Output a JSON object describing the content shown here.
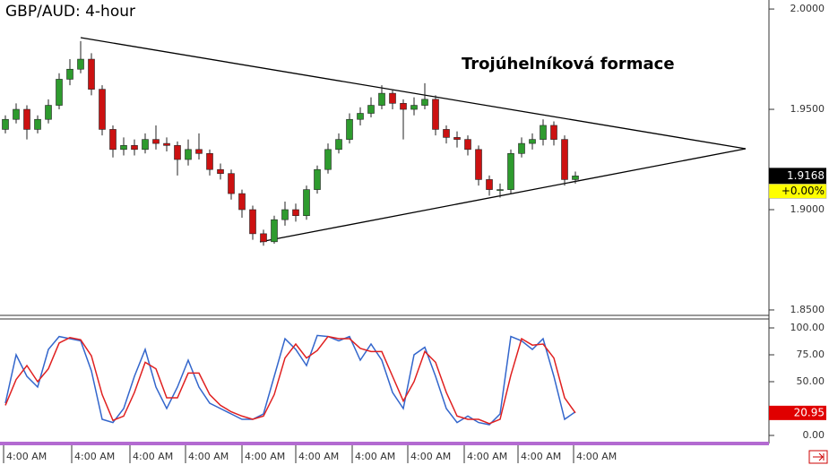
{
  "chart_data": [
    {
      "type": "candlestick",
      "title": "GBP/AUD: 4-hour",
      "annotation": "Trojúhelníková formace",
      "open": [
        1.94,
        1.945,
        1.95,
        1.94,
        1.945,
        1.952,
        1.965,
        1.97,
        1.975,
        1.96,
        1.94,
        1.93,
        1.932,
        1.93,
        1.935,
        1.933,
        1.932,
        1.925,
        1.93,
        1.928,
        1.92,
        1.918,
        1.908,
        1.9,
        1.888,
        1.884,
        1.895,
        1.9,
        1.897,
        1.91,
        1.92,
        1.93,
        1.935,
        1.945,
        1.948,
        1.952,
        1.958,
        1.953,
        1.95,
        1.952,
        1.955,
        1.94,
        1.936,
        1.935,
        1.93,
        1.915,
        1.91,
        1.91,
        1.928,
        1.933,
        1.935,
        1.942,
        1.935,
        1.915
      ],
      "high": [
        1.947,
        1.953,
        1.952,
        1.947,
        1.955,
        1.968,
        1.975,
        1.984,
        1.978,
        1.962,
        1.942,
        1.936,
        1.935,
        1.938,
        1.942,
        1.936,
        1.934,
        1.935,
        1.938,
        1.93,
        1.923,
        1.92,
        1.91,
        1.902,
        1.89,
        1.897,
        1.904,
        1.903,
        1.912,
        1.922,
        1.933,
        1.938,
        1.948,
        1.951,
        1.956,
        1.962,
        1.96,
        1.955,
        1.956,
        1.963,
        1.957,
        1.942,
        1.939,
        1.937,
        1.932,
        1.917,
        1.913,
        1.93,
        1.936,
        1.938,
        1.945,
        1.944,
        1.937,
        1.919
      ],
      "low": [
        1.938,
        1.943,
        1.935,
        1.938,
        1.943,
        1.95,
        1.962,
        1.968,
        1.957,
        1.937,
        1.926,
        1.927,
        1.927,
        1.928,
        1.93,
        1.929,
        1.917,
        1.922,
        1.925,
        1.917,
        1.915,
        1.905,
        1.896,
        1.885,
        1.882,
        1.883,
        1.892,
        1.894,
        1.895,
        1.908,
        1.918,
        1.928,
        1.933,
        1.942,
        1.946,
        1.95,
        1.95,
        1.935,
        1.947,
        1.95,
        1.937,
        1.933,
        1.931,
        1.927,
        1.912,
        1.907,
        1.906,
        1.908,
        1.926,
        1.93,
        1.932,
        1.932,
        1.912,
        1.913
      ],
      "close": [
        1.945,
        1.95,
        1.94,
        1.945,
        1.952,
        1.965,
        1.97,
        1.975,
        1.96,
        1.94,
        1.93,
        1.932,
        1.93,
        1.935,
        1.933,
        1.932,
        1.925,
        1.93,
        1.928,
        1.92,
        1.918,
        1.908,
        1.9,
        1.888,
        1.884,
        1.895,
        1.9,
        1.897,
        1.91,
        1.92,
        1.93,
        1.935,
        1.945,
        1.948,
        1.952,
        1.958,
        1.953,
        1.95,
        1.952,
        1.955,
        1.94,
        1.936,
        1.935,
        1.93,
        1.915,
        1.91,
        1.91,
        1.928,
        1.933,
        1.935,
        1.942,
        1.935,
        1.915,
        1.9168
      ],
      "up_color": "#2e9b2e",
      "down_color": "#cc1111",
      "ylim": [
        1.8473,
        2.0045
      ],
      "yticks": [
        {
          "value": 2.0,
          "label": "2.0000"
        },
        {
          "value": 1.95,
          "label": "1.9500"
        },
        {
          "value": 1.9,
          "label": "1.9000"
        },
        {
          "value": 1.85,
          "label": "1.8500"
        }
      ],
      "last_price": 1.9168,
      "change_label": "+0.00%",
      "x_labels": [
        "4:00 AM",
        "4:00 AM",
        "4:00 AM",
        "4:00 AM",
        "4:00 AM",
        "4:00 AM",
        "4:00 AM",
        "4:00 AM",
        "4:00 AM",
        "4:00 AM",
        "4:00 AM"
      ]
    },
    {
      "type": "line",
      "series": [
        {
          "color": "#3366cc",
          "values": [
            30,
            75,
            55,
            45,
            80,
            92,
            90,
            88,
            60,
            15,
            12,
            25,
            55,
            80,
            45,
            25,
            45,
            70,
            45,
            30,
            25,
            20,
            15,
            15,
            20,
            55,
            90,
            80,
            65,
            93,
            92,
            88,
            92,
            70,
            85,
            70,
            40,
            25,
            75,
            82,
            55,
            25,
            12,
            18,
            12,
            10,
            20,
            92,
            88,
            80,
            90,
            55,
            15,
            22
          ]
        },
        {
          "color": "#e02020",
          "values": [
            28,
            52,
            65,
            50,
            62,
            86,
            91,
            89,
            74,
            38,
            14,
            18,
            40,
            68,
            62,
            35,
            35,
            58,
            58,
            38,
            28,
            22,
            18,
            15,
            18,
            38,
            72,
            85,
            72,
            79,
            92,
            90,
            90,
            81,
            78,
            78,
            55,
            32,
            50,
            78,
            68,
            40,
            18,
            15,
            15,
            11,
            15,
            56,
            90,
            84,
            85,
            72,
            35,
            20.95
          ]
        }
      ],
      "ylim": [
        -5,
        107.5
      ],
      "yticks": [
        {
          "value": 100,
          "label": "100.00"
        },
        {
          "value": 75,
          "label": "75.00"
        },
        {
          "value": 50,
          "label": "50.00"
        },
        {
          "value": 0,
          "label": "0.00"
        }
      ],
      "last_value": 20.95
    }
  ]
}
